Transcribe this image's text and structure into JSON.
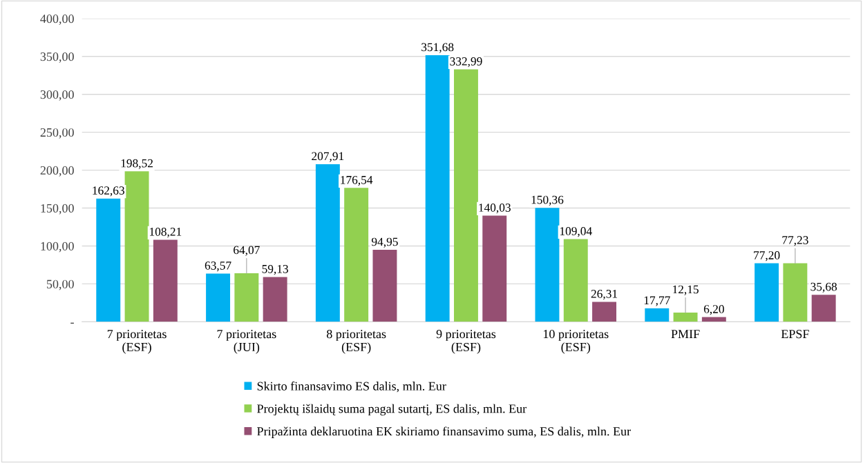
{
  "chart_data": {
    "type": "bar",
    "categories": [
      "7 prioritetas\n(ESF)",
      "7 prioritetas\n(JUI)",
      "8 prioritetas\n(ESF)",
      "9 prioritetas\n(ESF)",
      "10 prioritetas\n(ESF)",
      "PMIF",
      "EPSF"
    ],
    "series": [
      {
        "name": "Skirto finansavimo ES dalis, mln. Eur",
        "color": "#00b0f0",
        "values": [
          162.63,
          63.57,
          207.91,
          351.68,
          150.36,
          17.77,
          77.2
        ],
        "value_labels": [
          "162,63",
          "63,57",
          "207,91",
          "351,68",
          "150,36",
          "17,77",
          "77,20"
        ]
      },
      {
        "name": "Projektų išlaidų suma pagal sutartį, ES dalis, mln. Eur",
        "color": "#92d050",
        "values": [
          198.52,
          64.07,
          176.54,
          332.99,
          109.04,
          12.15,
          77.23
        ],
        "value_labels": [
          "198,52",
          "64,07",
          "176,54",
          "332,99",
          "109,04",
          "12,15",
          "77,23"
        ]
      },
      {
        "name": "Pripažinta deklaruotina EK skiriamo finansavimo suma, ES dalis, mln. Eur",
        "color": "#954f72",
        "values": [
          108.21,
          59.13,
          94.95,
          140.03,
          26.31,
          6.2,
          35.68
        ],
        "value_labels": [
          "108,21",
          "59,13",
          "94,95",
          "140,03",
          "26,31",
          "6,20",
          "35,68"
        ]
      }
    ],
    "ylim": [
      0,
      400
    ],
    "yticks": [
      {
        "value": 0,
        "label": "-"
      },
      {
        "value": 50,
        "label": "50,00"
      },
      {
        "value": 100,
        "label": "100,00"
      },
      {
        "value": 150,
        "label": "150,00"
      },
      {
        "value": 200,
        "label": "200,00"
      },
      {
        "value": 250,
        "label": "250,00"
      },
      {
        "value": 300,
        "label": "300,00"
      },
      {
        "value": 350,
        "label": "350,00"
      },
      {
        "value": 400,
        "label": "400,00"
      }
    ],
    "grid": "y",
    "legend": "bottom"
  }
}
